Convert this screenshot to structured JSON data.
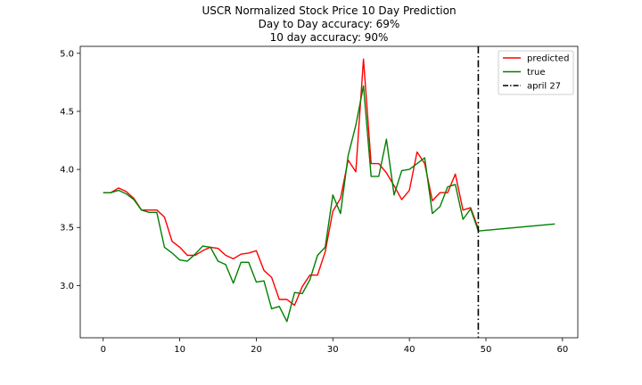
{
  "chart_data": {
    "type": "line",
    "title": [
      "USCR Normalized Stock Price 10 Day Prediction",
      "Day to Day accuracy: 69%",
      "10 day accuracy: 90%"
    ],
    "xlabel": "",
    "ylabel": "",
    "xlim": [
      -3,
      62
    ],
    "ylim": [
      2.55,
      5.06
    ],
    "xticks": [
      0,
      10,
      20,
      30,
      40,
      50,
      60
    ],
    "yticks": [
      3.0,
      3.5,
      4.0,
      4.5,
      5.0
    ],
    "xtick_labels": [
      "0",
      "10",
      "20",
      "30",
      "40",
      "50",
      "60"
    ],
    "ytick_labels": [
      "3.0",
      "3.5",
      "4.0",
      "4.5",
      "5.0"
    ],
    "grid": false,
    "legend_position": "top-right",
    "series": [
      {
        "name": "predicted",
        "color": "#ff0000",
        "x": [
          0,
          1,
          2,
          3,
          4,
          5,
          6,
          7,
          8,
          9,
          10,
          11,
          12,
          13,
          14,
          15,
          16,
          17,
          18,
          19,
          20,
          21,
          22,
          23,
          24,
          25,
          26,
          27,
          28,
          29,
          30,
          31,
          32,
          33,
          34,
          35,
          36,
          37,
          38,
          39,
          40,
          41,
          42,
          43,
          44,
          45,
          46,
          47,
          48,
          49
        ],
        "y": [
          3.8,
          3.8,
          3.84,
          3.81,
          3.75,
          3.65,
          3.65,
          3.65,
          3.59,
          3.38,
          3.33,
          3.26,
          3.26,
          3.3,
          3.33,
          3.32,
          3.26,
          3.23,
          3.27,
          3.28,
          3.3,
          3.13,
          3.07,
          2.88,
          2.88,
          2.83,
          2.99,
          3.09,
          3.09,
          3.29,
          3.64,
          3.75,
          4.08,
          3.98,
          4.95,
          4.05,
          4.05,
          3.97,
          3.86,
          3.74,
          3.82,
          4.15,
          4.05,
          3.73,
          3.8,
          3.8,
          3.96,
          3.65,
          3.67,
          3.49
        ]
      },
      {
        "name": "true",
        "color": "#008000",
        "x": [
          0,
          1,
          2,
          3,
          4,
          5,
          6,
          7,
          8,
          9,
          10,
          11,
          12,
          13,
          14,
          15,
          16,
          17,
          18,
          19,
          20,
          21,
          22,
          23,
          24,
          25,
          26,
          27,
          28,
          29,
          30,
          31,
          32,
          33,
          34,
          35,
          36,
          37,
          38,
          39,
          40,
          41,
          42,
          43,
          44,
          45,
          46,
          47,
          48,
          49,
          59
        ],
        "y": [
          3.8,
          3.8,
          3.82,
          3.79,
          3.74,
          3.65,
          3.63,
          3.63,
          3.33,
          3.28,
          3.22,
          3.21,
          3.27,
          3.34,
          3.33,
          3.21,
          3.18,
          3.02,
          3.2,
          3.2,
          3.03,
          3.04,
          2.8,
          2.82,
          2.69,
          2.94,
          2.93,
          3.05,
          3.26,
          3.33,
          3.78,
          3.62,
          4.12,
          4.38,
          4.72,
          3.94,
          3.94,
          4.26,
          3.78,
          3.99,
          4.0,
          4.05,
          4.1,
          3.62,
          3.68,
          3.85,
          3.87,
          3.57,
          3.66,
          3.47,
          3.53
        ]
      },
      {
        "name": "april 27",
        "color": "#000000",
        "kind": "vline",
        "x": 49
      }
    ]
  }
}
